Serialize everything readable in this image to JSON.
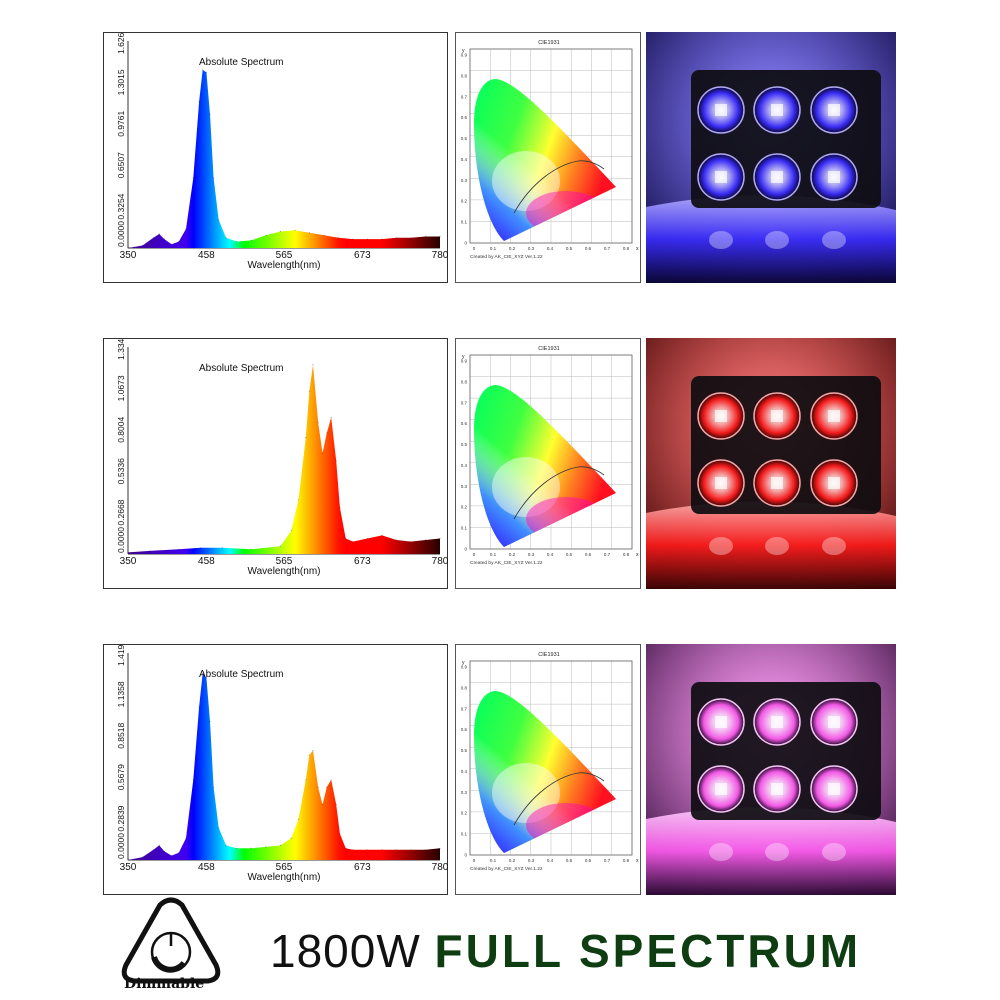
{
  "chart_data": [
    {
      "type": "area",
      "title": "Absolute Spectrum",
      "xlabel": "Wavelength(nm)",
      "ylabel": "",
      "xlim": [
        350,
        780
      ],
      "ylim": [
        0,
        1.6268
      ],
      "x_ticks": [
        "350",
        "458",
        "565",
        "673",
        "780"
      ],
      "y_ticks": [
        "0.0000",
        "0.3254",
        "0.6507",
        "0.9761",
        "1.3015",
        "1.6268"
      ],
      "x": [
        350,
        370,
        385,
        393,
        400,
        410,
        420,
        430,
        440,
        448,
        453,
        458,
        463,
        468,
        475,
        485,
        500,
        520,
        540,
        560,
        580,
        600,
        620,
        640,
        660,
        680,
        700,
        720,
        740,
        760,
        780
      ],
      "values": [
        0,
        0.02,
        0.08,
        0.11,
        0.07,
        0.03,
        0.05,
        0.15,
        0.55,
        1.15,
        1.4,
        1.38,
        1.05,
        0.55,
        0.22,
        0.08,
        0.05,
        0.06,
        0.1,
        0.13,
        0.14,
        0.12,
        0.1,
        0.08,
        0.07,
        0.07,
        0.07,
        0.08,
        0.08,
        0.09,
        0.09
      ]
    },
    {
      "type": "area",
      "title": "Absolute Spectrum",
      "xlabel": "Wavelength(nm)",
      "ylabel": "",
      "xlim": [
        350,
        780
      ],
      "ylim": [
        0,
        1.3341
      ],
      "x_ticks": [
        "350",
        "458",
        "565",
        "673",
        "780"
      ],
      "y_ticks": [
        "0.0000",
        "0.2668",
        "0.5336",
        "0.8004",
        "1.0673",
        "1.3341"
      ],
      "x": [
        350,
        380,
        420,
        450,
        480,
        520,
        560,
        575,
        585,
        595,
        600,
        605,
        612,
        618,
        624,
        630,
        637,
        642,
        650,
        660,
        680,
        700,
        720,
        740,
        760,
        780
      ],
      "values": [
        0.01,
        0.02,
        0.03,
        0.04,
        0.04,
        0.03,
        0.05,
        0.15,
        0.35,
        0.75,
        1.05,
        1.22,
        0.85,
        0.65,
        0.78,
        0.88,
        0.6,
        0.3,
        0.1,
        0.08,
        0.1,
        0.12,
        0.09,
        0.08,
        0.09,
        0.1
      ]
    },
    {
      "type": "area",
      "title": "Absolute Spectrum",
      "xlabel": "Wavelength(nm)",
      "ylabel": "",
      "xlim": [
        350,
        780
      ],
      "ylim": [
        0,
        1.4197
      ],
      "x_ticks": [
        "350",
        "458",
        "565",
        "673",
        "780"
      ],
      "y_ticks": [
        "0.0000",
        "0.2839",
        "0.5679",
        "0.8518",
        "1.1358",
        "1.4197"
      ],
      "x": [
        350,
        370,
        385,
        393,
        400,
        410,
        420,
        430,
        440,
        448,
        453,
        458,
        463,
        468,
        475,
        485,
        500,
        520,
        540,
        560,
        575,
        585,
        595,
        600,
        605,
        612,
        618,
        624,
        630,
        637,
        642,
        650,
        660,
        680,
        700,
        720,
        740,
        760,
        780
      ],
      "values": [
        0,
        0.02,
        0.07,
        0.1,
        0.06,
        0.03,
        0.05,
        0.15,
        0.55,
        1.05,
        1.28,
        1.25,
        0.95,
        0.5,
        0.22,
        0.1,
        0.08,
        0.08,
        0.09,
        0.1,
        0.15,
        0.28,
        0.55,
        0.72,
        0.75,
        0.5,
        0.38,
        0.5,
        0.55,
        0.38,
        0.18,
        0.08,
        0.07,
        0.07,
        0.07,
        0.07,
        0.07,
        0.07,
        0.08
      ]
    }
  ],
  "cie": {
    "title": "CIE1931",
    "x_ticks": [
      "0",
      "0.1",
      "0.2",
      "0.3",
      "0.4",
      "0.5",
      "0.6",
      "0.7",
      "0.8"
    ],
    "y_ticks": [
      "0.9",
      "0.8",
      "0.7",
      "0.6",
      "0.5",
      "0.4",
      "0.3",
      "0.2",
      "0.1",
      "0"
    ],
    "x_label": "x",
    "y_label": "y",
    "footer": "Created by AK_CIE_XYZ Ver.1.22"
  },
  "photos": [
    {
      "glow": "#3a2cff",
      "dark": "#0a0636",
      "lens": "#b8b2ff"
    },
    {
      "glow": "#ff1a1a",
      "dark": "#3a0505",
      "lens": "#ffb0b0"
    },
    {
      "glow": "#ff5cf0",
      "dark": "#2a0a33",
      "lens": "#ffd0ff"
    }
  ],
  "badge": {
    "label": "Dimmable"
  },
  "headline": {
    "power": "1800W",
    "text": "FULL SPECTRUM"
  },
  "colors": {
    "text_dark": "#111111",
    "headline_green": "#0f3d12"
  }
}
